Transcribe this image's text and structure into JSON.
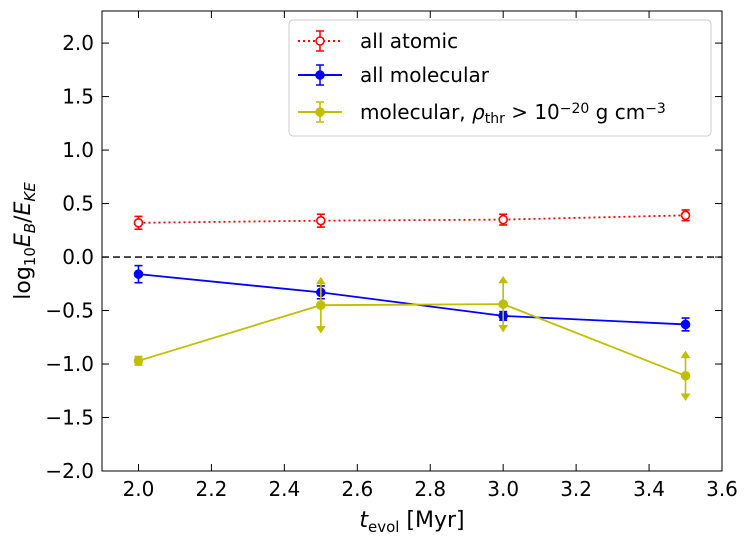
{
  "chart_data": {
    "type": "line",
    "title": "",
    "xlabel_main": "t",
    "xlabel_sub": "evol",
    "xlabel_unit": " [Myr]",
    "ylabel_prefix": "log",
    "ylabel_base": "10",
    "ylabel_num": "E",
    "ylabel_num_sub": "B",
    "ylabel_slash": "/",
    "ylabel_den": "E",
    "ylabel_den_sub": "KE",
    "xlim": [
      1.9,
      3.6
    ],
    "ylim": [
      -2.0,
      2.3
    ],
    "xticks": [
      2.0,
      2.2,
      2.4,
      2.6,
      2.8,
      3.0,
      3.2,
      3.4,
      3.6
    ],
    "xtick_labels": [
      "2.0",
      "2.2",
      "2.4",
      "2.6",
      "2.8",
      "3.0",
      "3.2",
      "3.4",
      "3.6"
    ],
    "yticks": [
      -2.0,
      -1.5,
      -1.0,
      -0.5,
      0.0,
      0.5,
      1.0,
      1.5,
      2.0
    ],
    "ytick_labels": [
      "−2.0",
      "−1.5",
      "−1.0",
      "−0.5",
      "0.0",
      "0.5",
      "1.0",
      "1.5",
      "2.0"
    ],
    "reference_line_y": 0.0,
    "legend_position": "top-right",
    "series": [
      {
        "name": "all atomic",
        "color": "#ff0000",
        "linestyle": "dotted",
        "marker": "open-circle",
        "x": [
          2.0,
          2.5,
          3.0,
          3.5
        ],
        "y": [
          0.32,
          0.34,
          0.35,
          0.39
        ],
        "yerr": [
          0.06,
          0.06,
          0.05,
          0.05
        ],
        "limit": [
          "none",
          "none",
          "none",
          "none"
        ]
      },
      {
        "name": "all molecular",
        "color": "#0000ff",
        "linestyle": "solid",
        "marker": "filled-circle",
        "x": [
          2.0,
          2.5,
          3.0,
          3.5
        ],
        "y": [
          -0.16,
          -0.33,
          -0.55,
          -0.63
        ],
        "yerr": [
          0.08,
          0.06,
          0.04,
          0.06
        ],
        "limit": [
          "none",
          "none",
          "none",
          "none"
        ]
      },
      {
        "name_prefix": "molecular, ",
        "name_rho": "ρ",
        "name_rho_sub": "thr",
        "name_mid": " > 10",
        "name_exp": "−20",
        "name_unit": " g cm",
        "name_unit_exp": "−3",
        "color": "#bfbf00",
        "linestyle": "solid",
        "marker": "filled-circle",
        "x": [
          2.0,
          2.5,
          3.0,
          3.5
        ],
        "y": [
          -0.97,
          -0.45,
          -0.44,
          -1.11
        ],
        "yerr": [
          0.04,
          0.2,
          0.2,
          0.17
        ],
        "limit": [
          "none",
          "both",
          "both",
          "both"
        ]
      }
    ]
  }
}
